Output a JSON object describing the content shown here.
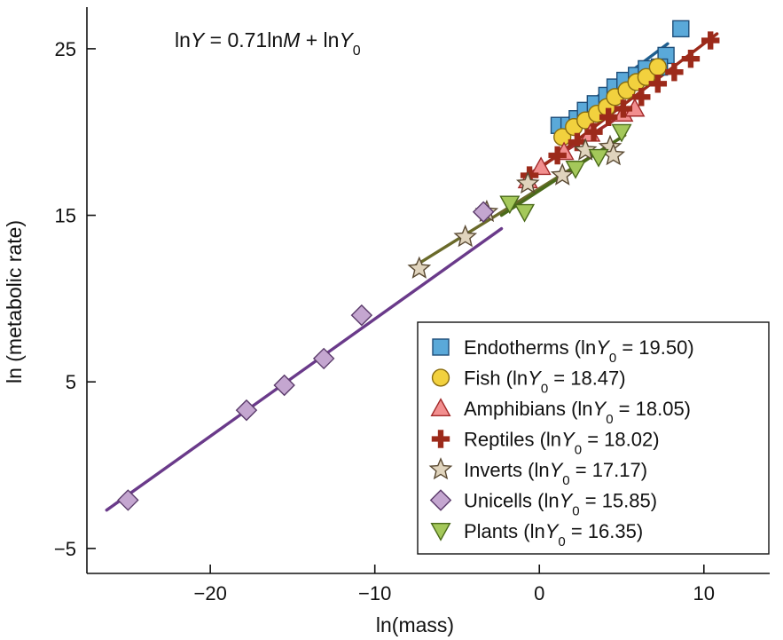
{
  "chart_data": {
    "type": "scatter",
    "title": "",
    "equation": {
      "parts": [
        {
          "t": "ln",
          "i": false,
          "s": false
        },
        {
          "t": "Y",
          "i": true,
          "s": false
        },
        {
          "t": " = 0.71ln",
          "i": false,
          "s": false
        },
        {
          "t": "M",
          "i": true,
          "s": false
        },
        {
          "t": " + ln",
          "i": false,
          "s": false
        },
        {
          "t": "Y",
          "i": true,
          "s": false
        },
        {
          "t": "0",
          "i": false,
          "s": true
        }
      ]
    },
    "xlabel": "ln(mass)",
    "ylabel": "ln (metabolic rate)",
    "xlim": [
      -27.5,
      14
    ],
    "ylim": [
      -6.5,
      27.5
    ],
    "xticks": [
      -20,
      -10,
      0,
      10
    ],
    "xtick_labels": [
      "−20",
      "−10",
      "0",
      "10"
    ],
    "yticks": [
      -5,
      5,
      15,
      25
    ],
    "ytick_labels": [
      "−5",
      "5",
      "15",
      "25"
    ],
    "grid": false,
    "legend_position": "bottom-right",
    "series": [
      {
        "name": "Endotherms",
        "intercept_label": "19.50",
        "marker": "square",
        "fill": "#5aa9d9",
        "stroke": "#1f4e79",
        "line_color": "#1f5f8f",
        "line": [
          [
            1.2,
            20.4
          ],
          [
            7.8,
            25.3
          ]
        ],
        "x": [
          1.2,
          1.8,
          2.3,
          2.8,
          3.4,
          4.1,
          4.6,
          5.2,
          5.9,
          6.5,
          7.7,
          7.3,
          8.6
        ],
        "y": [
          20.4,
          20.4,
          20.8,
          21.3,
          21.7,
          22.2,
          22.7,
          23.1,
          23.4,
          23.8,
          24.6,
          23.9,
          26.2
        ]
      },
      {
        "name": "Fish",
        "intercept_label": "18.47",
        "marker": "circle",
        "fill": "#f2d13e",
        "stroke": "#8a6d10",
        "line_color": "#8a6d10",
        "line": [
          [
            1.2,
            19.4
          ],
          [
            7.5,
            24.2
          ]
        ],
        "x": [
          1.4,
          2.1,
          2.8,
          3.5,
          4.1,
          4.6,
          5.3,
          5.9,
          6.5,
          7.2
        ],
        "y": [
          19.7,
          20.3,
          20.7,
          21.1,
          21.5,
          22.1,
          22.5,
          23.0,
          23.3,
          23.9
        ]
      },
      {
        "name": "Amphibians",
        "intercept_label": "18.05",
        "marker": "triangle-up",
        "fill": "#f28f8f",
        "stroke": "#a22a2a",
        "line_color": "#a22a2a",
        "line": [
          [
            -0.6,
            17.5
          ],
          [
            5.8,
            21.5
          ]
        ],
        "x": [
          -0.7,
          0.1,
          1.5,
          3.1,
          5.1,
          5.8
        ],
        "y": [
          17.1,
          17.9,
          18.8,
          19.9,
          21.1,
          21.4
        ]
      },
      {
        "name": "Reptiles",
        "intercept_label": "18.02",
        "marker": "plus",
        "fill": "#9c2a1a",
        "stroke": "#9c2a1a",
        "line_color": "#9c2a1a",
        "line": [
          [
            -0.8,
            17.2
          ],
          [
            10.8,
            25.9
          ]
        ],
        "x": [
          -0.6,
          1.1,
          2.3,
          3.3,
          4.2,
          5.1,
          6.2,
          7.2,
          8.2,
          9.2,
          10.4
        ],
        "y": [
          17.4,
          18.6,
          19.4,
          20.0,
          20.9,
          21.4,
          22.1,
          22.9,
          23.6,
          24.4,
          25.5
        ]
      },
      {
        "name": "Inverts",
        "intercept_label": "17.17",
        "marker": "star",
        "fill": "#e0d4bd",
        "stroke": "#5a4a33",
        "line_color": "#6a6a2a",
        "line": [
          [
            -7.5,
            12.0
          ],
          [
            5.2,
            19.8
          ]
        ],
        "x": [
          -7.3,
          -4.5,
          -3.2,
          -0.7,
          1.4,
          2.8,
          4.3,
          4.5
        ],
        "y": [
          11.8,
          13.7,
          15.2,
          16.9,
          17.4,
          18.9,
          19.1,
          18.6
        ]
      },
      {
        "name": "Unicells",
        "intercept_label": "15.85",
        "marker": "diamond",
        "fill": "#c4a6d0",
        "stroke": "#5a3a6a",
        "line_color": "#6a3a8a",
        "line": [
          [
            -26.3,
            -2.7
          ],
          [
            -2.3,
            14.2
          ]
        ],
        "x": [
          -25.0,
          -17.8,
          -15.5,
          -13.1,
          -10.8,
          -3.4
        ],
        "y": [
          -2.1,
          3.3,
          4.8,
          6.4,
          9.0,
          15.2
        ]
      },
      {
        "name": "Plants",
        "intercept_label": "16.35",
        "marker": "triangle-down",
        "fill": "#a4c85a",
        "stroke": "#4a6a1a",
        "line_color": "#4a6a1a",
        "line": [
          [
            -2.3,
            15.0
          ],
          [
            5.0,
            19.7
          ]
        ],
        "x": [
          -1.8,
          -0.9,
          2.2,
          3.6,
          5.0
        ],
        "y": [
          15.7,
          15.2,
          17.8,
          18.5,
          20.0
        ]
      }
    ]
  }
}
